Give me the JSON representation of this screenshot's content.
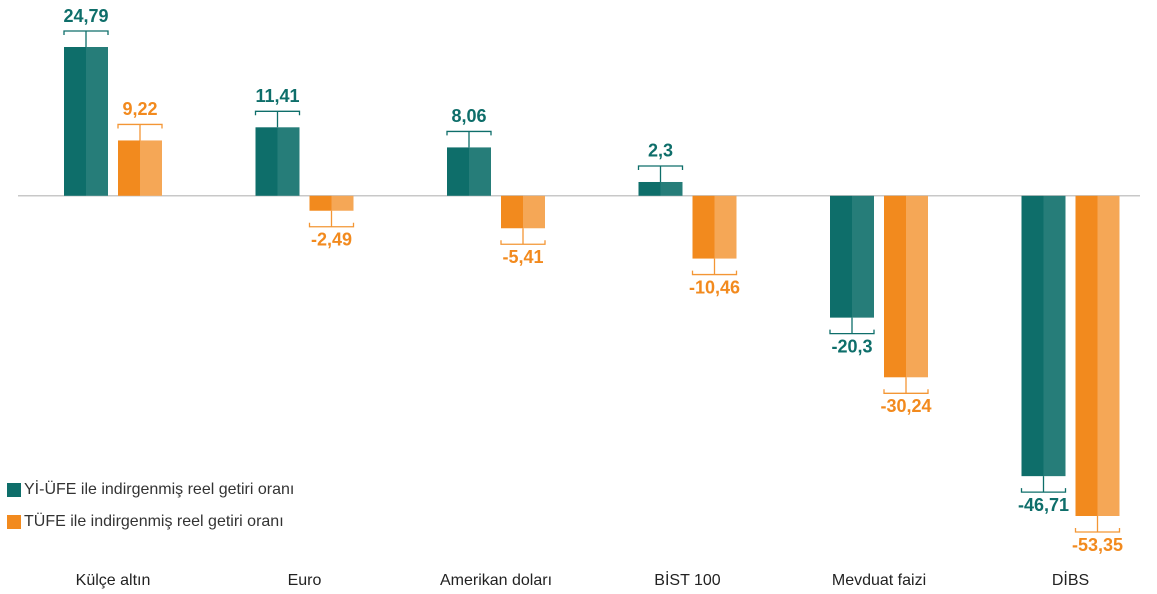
{
  "chart_data": {
    "type": "bar",
    "categories": [
      "Külçe altın",
      "Euro",
      "Amerikan doları",
      "BİST 100",
      "Mevduat faizi",
      "DİBS"
    ],
    "series": [
      {
        "name": "Yİ-ÜFE ile indirgenmiş reel getiri oranı",
        "color": "#0e6e6a",
        "values": [
          24.79,
          11.41,
          8.06,
          2.3,
          -20.3,
          -46.71
        ],
        "value_labels": [
          "24,79",
          "11,41",
          "8,06",
          "2,3",
          "-20,3",
          "-46,71"
        ]
      },
      {
        "name": "TÜFE ile indirgenmiş reel getiri oranı",
        "color": "#f28a1e",
        "values": [
          9.22,
          -2.49,
          -5.41,
          -10.46,
          -30.24,
          -53.35
        ],
        "value_labels": [
          "9,22",
          "-2,49",
          "-5,41",
          "-10,46",
          "-30,24",
          "-53,35"
        ]
      }
    ],
    "legend": "bottom-left"
  }
}
